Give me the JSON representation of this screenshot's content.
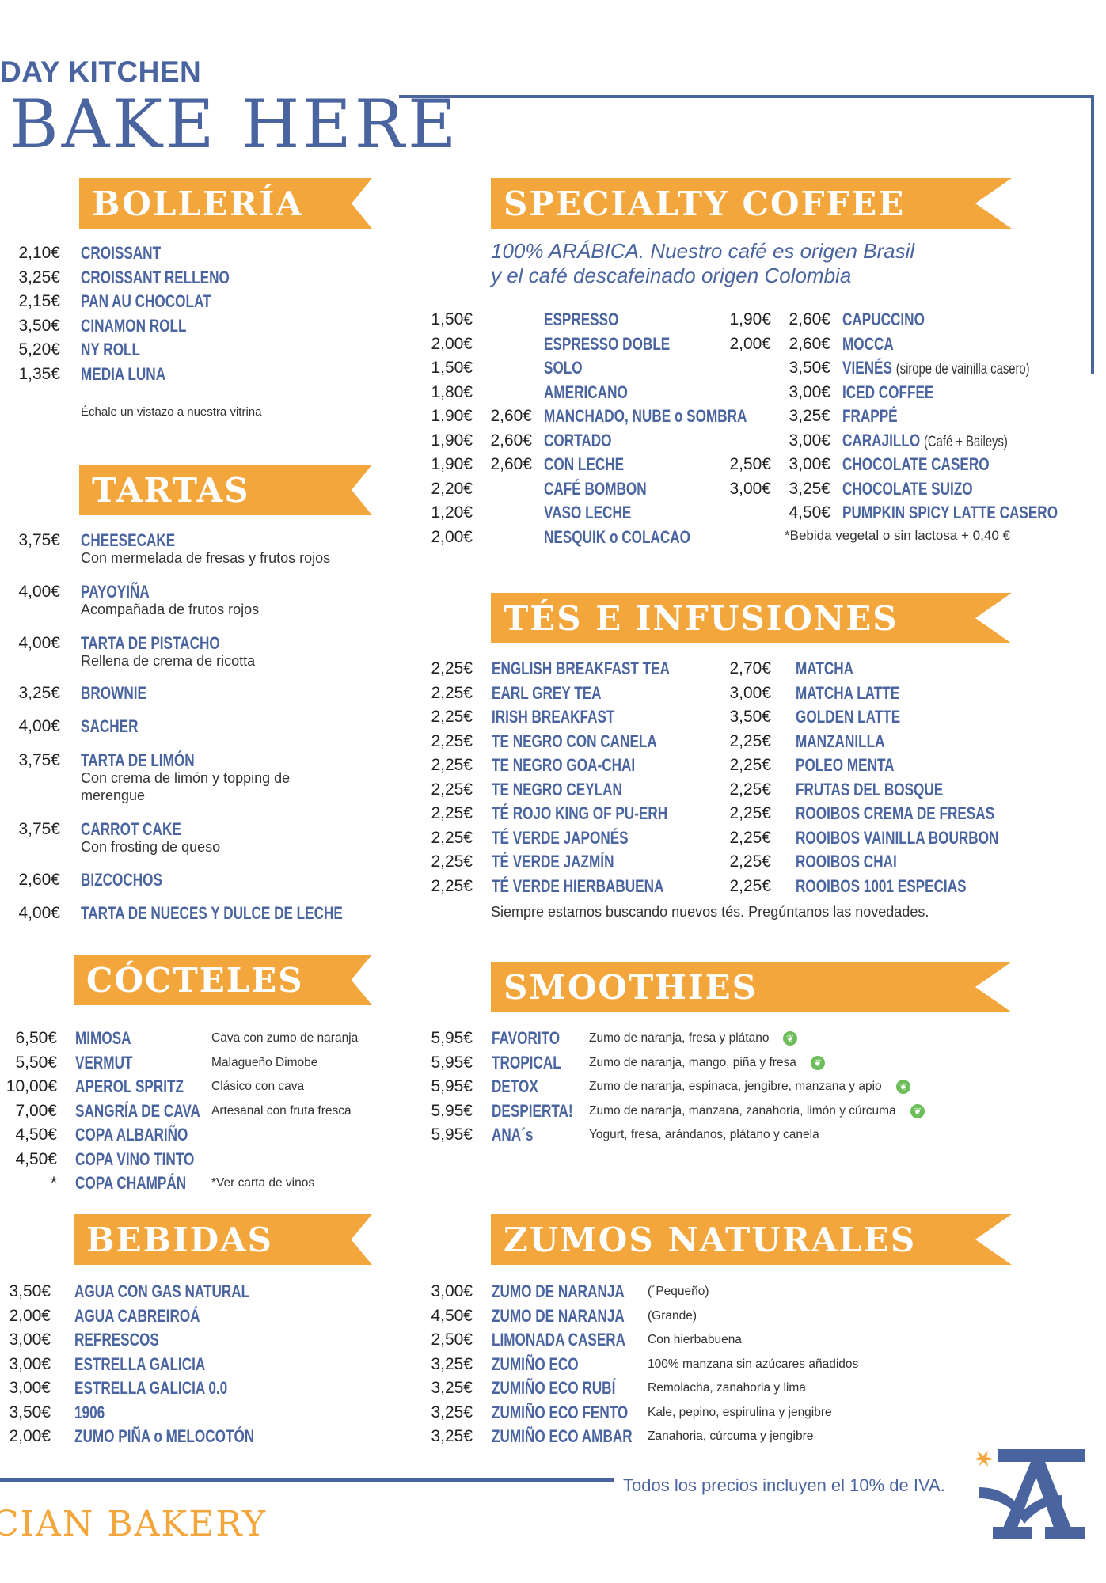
{
  "header": {
    "brand_top": "DAY KITCHEN",
    "brand_big": "BAKE HERE"
  },
  "colors": {
    "blue": "#4A64A0",
    "orange": "#F2A63B",
    "green": "#6DBE5A"
  },
  "bolleria": {
    "title": "BOLLERÍA",
    "items": [
      {
        "price": "2,10€",
        "name": "CROISSANT"
      },
      {
        "price": "3,25€",
        "name": "CROISSANT RELLENO"
      },
      {
        "price": "2,15€",
        "name": "PAN AU CHOCOLAT"
      },
      {
        "price": "3,50€",
        "name": "CINAMON ROLL"
      },
      {
        "price": "5,20€",
        "name": "NY ROLL"
      },
      {
        "price": "1,35€",
        "name": "MEDIA LUNA"
      }
    ],
    "note": "Échale un vistazo a nuestra vitrina"
  },
  "tartas": {
    "title": "TARTAS",
    "items": [
      {
        "price": "3,75€",
        "name": "CHEESECAKE",
        "sub": "Con mermelada de fresas y frutos rojos"
      },
      {
        "price": "4,00€",
        "name": "PAYOYIÑA",
        "sub": "Acompañada de frutos rojos"
      },
      {
        "price": "4,00€",
        "name": "TARTA DE PISTACHO",
        "sub": "Rellena de crema de ricotta"
      },
      {
        "price": "3,25€",
        "name": "BROWNIE"
      },
      {
        "price": "4,00€",
        "name": "SACHER"
      },
      {
        "price": "3,75€",
        "name": "TARTA DE LIMÓN",
        "sub": "Con crema de limón y topping de",
        "sub2": "merengue"
      },
      {
        "price": "3,75€",
        "name": "CARROT CAKE",
        "sub": "Con frosting de queso"
      },
      {
        "price": "2,60€",
        "name": "BIZCOCHOS"
      },
      {
        "price": "4,00€",
        "name": "TARTA DE NUECES Y DULCE DE LECHE"
      }
    ]
  },
  "cocteles": {
    "title": "CÓCTELES",
    "items": [
      {
        "price": "6,50€",
        "name": "MIMOSA",
        "desc": "Cava con zumo de naranja"
      },
      {
        "price": "5,50€",
        "name": "VERMUT",
        "desc": "Malagueño Dimobe"
      },
      {
        "price": "10,00€",
        "name": "APEROL SPRITZ",
        "desc": "Clásico con cava"
      },
      {
        "price": "7,00€",
        "name": "SANGRÍA DE CAVA",
        "desc": "Artesanal con fruta fresca"
      },
      {
        "price": "4,50€",
        "name": "COPA ALBARIÑO"
      },
      {
        "price": "4,50€",
        "name": "COPA VINO TINTO"
      },
      {
        "price": "*",
        "name": "COPA CHAMPÁN",
        "desc": "*Ver carta de vinos"
      }
    ]
  },
  "bebidas": {
    "title": "BEBIDAS",
    "items": [
      {
        "price": "3,50€",
        "name": "AGUA CON GAS NATURAL"
      },
      {
        "price": "2,00€",
        "name": "AGUA CABREIROÁ"
      },
      {
        "price": "3,00€",
        "name": "REFRESCOS"
      },
      {
        "price": "3,00€",
        "name": "ESTRELLA GALICIA"
      },
      {
        "price": "3,00€",
        "name": "ESTRELLA GALICIA 0.0"
      },
      {
        "price": "3,50€",
        "name": "1906"
      },
      {
        "price": "2,00€",
        "name": "ZUMO PIÑA o MELOCOTÓN"
      }
    ]
  },
  "coffee": {
    "title": "SPECIALTY COFFEE",
    "subtitle_1": "100% ARÁBICA. Nuestro café es origen Brasil",
    "subtitle_2": "y el café descafeinado origen Colombia",
    "left": [
      {
        "p1": "1,50€",
        "p2": "",
        "name": "ESPRESSO"
      },
      {
        "p1": "2,00€",
        "p2": "",
        "name": "ESPRESSO DOBLE"
      },
      {
        "p1": "1,50€",
        "p2": "",
        "name": "SOLO"
      },
      {
        "p1": "1,80€",
        "p2": "",
        "name": "AMERICANO"
      },
      {
        "p1": "1,90€",
        "p2": "2,60€",
        "name": "MANCHADO, NUBE o SOMBRA"
      },
      {
        "p1": "1,90€",
        "p2": "2,60€",
        "name": "CORTADO"
      },
      {
        "p1": "1,90€",
        "p2": "2,60€",
        "name": "CON LECHE"
      },
      {
        "p1": "2,20€",
        "p2": "",
        "name": "CAFÉ BOMBON"
      },
      {
        "p1": "1,20€",
        "p2": "",
        "name": "VASO LECHE"
      },
      {
        "p1": "2,00€",
        "p2": "",
        "name": "NESQUIK o COLACAO"
      }
    ],
    "right": [
      {
        "p1": "1,90€",
        "p2": "2,60€",
        "name": "CAPUCCINO"
      },
      {
        "p1": "2,00€",
        "p2": "2,60€",
        "name": "MOCCA"
      },
      {
        "p1": "",
        "p2": "3,50€",
        "name": "VIENÉS",
        "extra": "(sirope de vainilla casero)"
      },
      {
        "p1": "",
        "p2": "3,00€",
        "name": "ICED COFFEE"
      },
      {
        "p1": "",
        "p2": "3,25€",
        "name": "FRAPPÉ"
      },
      {
        "p1": "",
        "p2": "3,00€",
        "name": "CARAJILLO",
        "extra": "(Café + Baileys)"
      },
      {
        "p1": "2,50€",
        "p2": "3,00€",
        "name": "CHOCOLATE CASERO"
      },
      {
        "p1": "3,00€",
        "p2": "3,25€",
        "name": "CHOCOLATE SUIZO"
      },
      {
        "p1": "",
        "p2": "4,50€",
        "name": "PUMPKIN SPICY LATTE CASERO"
      }
    ],
    "note": "*Bebida vegetal o sin lactosa + 0,40 €"
  },
  "tes": {
    "title": "TÉS E INFUSIONES",
    "left": [
      {
        "price": "2,25€",
        "name": "ENGLISH BREAKFAST TEA"
      },
      {
        "price": "2,25€",
        "name": "EARL GREY TEA"
      },
      {
        "price": "2,25€",
        "name": "IRISH BREAKFAST"
      },
      {
        "price": "2,25€",
        "name": "TE NEGRO CON CANELA"
      },
      {
        "price": "2,25€",
        "name": "TE NEGRO GOA-CHAI"
      },
      {
        "price": "2,25€",
        "name": "TE NEGRO CEYLAN"
      },
      {
        "price": "2,25€",
        "name": "TÉ ROJO KING OF PU-ERH"
      },
      {
        "price": "2,25€",
        "name": "TÉ VERDE JAPONÉS"
      },
      {
        "price": "2,25€",
        "name": "TÉ VERDE JAZMÍN"
      },
      {
        "price": "2,25€",
        "name": "TÉ VERDE HIERBABUENA"
      }
    ],
    "right": [
      {
        "price": "2,70€",
        "name": "MATCHA"
      },
      {
        "price": "3,00€",
        "name": "MATCHA LATTE"
      },
      {
        "price": "3,50€",
        "name": "GOLDEN LATTE"
      },
      {
        "price": "2,25€",
        "name": "MANZANILLA"
      },
      {
        "price": "2,25€",
        "name": "POLEO MENTA"
      },
      {
        "price": "2,25€",
        "name": "FRUTAS DEL BOSQUE"
      },
      {
        "price": "2,25€",
        "name": "ROOIBOS CREMA DE FRESAS"
      },
      {
        "price": "2,25€",
        "name": "ROOIBOS VAINILLA BOURBON"
      },
      {
        "price": "2,25€",
        "name": "ROOIBOS CHAI"
      },
      {
        "price": "2,25€",
        "name": "ROOIBOS 1001 ESPECIAS"
      }
    ],
    "note": "Siempre estamos buscando nuevos tés. Pregúntanos las novedades."
  },
  "smoothies": {
    "title": "SMOOTHIES",
    "items": [
      {
        "price": "5,95€",
        "name": "FAVORITO",
        "desc": "Zumo de naranja, fresa y plátano",
        "vegan": true
      },
      {
        "price": "5,95€",
        "name": "TROPICAL",
        "desc": "Zumo de naranja, mango, piña y fresa",
        "vegan": true
      },
      {
        "price": "5,95€",
        "name": "DETOX",
        "desc": "Zumo de naranja, espinaca, jengibre, manzana y apio",
        "vegan": true
      },
      {
        "price": "5,95€",
        "name": "DESPIERTA!",
        "desc": "Zumo de naranja, manzana, zanahoria, limón y cúrcuma",
        "vegan": true
      },
      {
        "price": "5,95€",
        "name": "ANA´s",
        "desc": "Yogurt, fresa, arándanos, plátano y canela",
        "vegan": false
      }
    ]
  },
  "zumos": {
    "title": "ZUMOS NATURALES",
    "items": [
      {
        "price": "3,00€",
        "name": "ZUMO DE NARANJA",
        "desc": "(´Pequeño)"
      },
      {
        "price": "4,50€",
        "name": "ZUMO DE NARANJA",
        "desc": "(Grande)"
      },
      {
        "price": "2,50€",
        "name": "LIMONADA CASERA",
        "desc": "Con hierbabuena"
      },
      {
        "price": "3,25€",
        "name": "ZUMIÑO ECO",
        "desc": "100% manzana sin azúcares añadidos"
      },
      {
        "price": "3,25€",
        "name": "ZUMIÑO ECO RUBÍ",
        "desc": "Remolacha, zanahoria y lima"
      },
      {
        "price": "3,25€",
        "name": "ZUMIÑO ECO FENTO",
        "desc": "Kale, pepino, espirulina y jengibre"
      },
      {
        "price": "3,25€",
        "name": "ZUMIÑO ECO AMBAR",
        "desc": "Zanahoria, cúrcuma y jengibre"
      }
    ]
  },
  "footer": {
    "iva": "Todos los precios incluyen el 10% de IVA.",
    "brand_bottom": "CIAN BAKERY",
    "logo": "A"
  }
}
